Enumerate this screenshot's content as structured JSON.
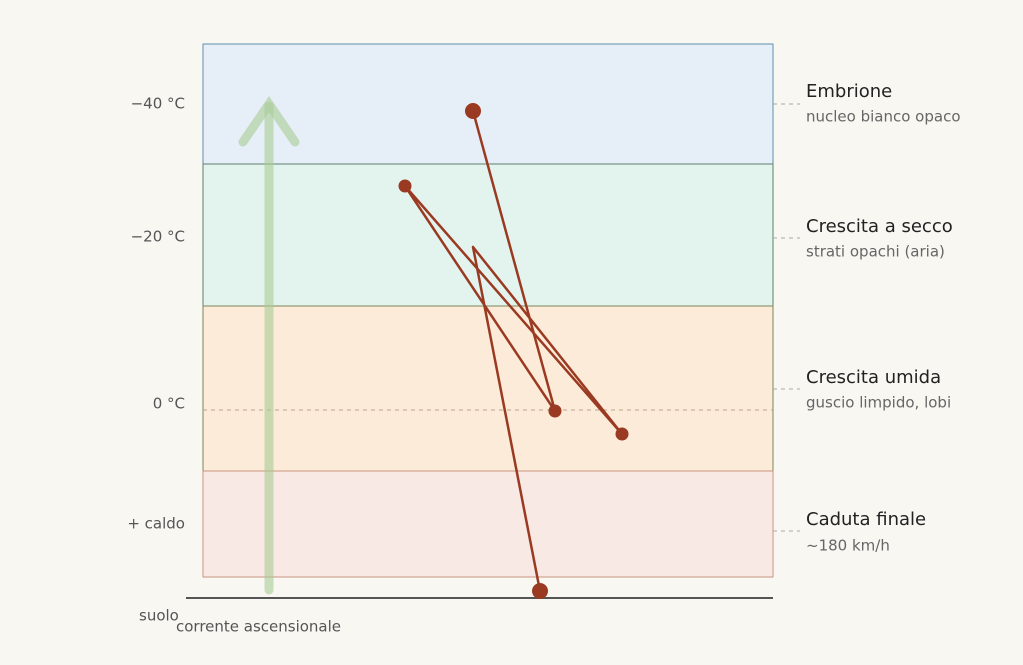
{
  "temperature_labels": [
    "−40 °C",
    "−20 °C",
    "0 °C",
    "+ caldo"
  ],
  "zones": [
    {
      "title": "Embrione",
      "subtitle": "nucleo bianco opaco"
    },
    {
      "title": "Crescita a secco",
      "subtitle": "strati opachi (aria)"
    },
    {
      "title": "Crescita umida",
      "subtitle": "guscio limpido, lobi"
    },
    {
      "title": "Caduta finale",
      "subtitle": "~180 km/h"
    }
  ],
  "ground_label": "suolo",
  "updraft_label": "corrente ascensionale"
}
